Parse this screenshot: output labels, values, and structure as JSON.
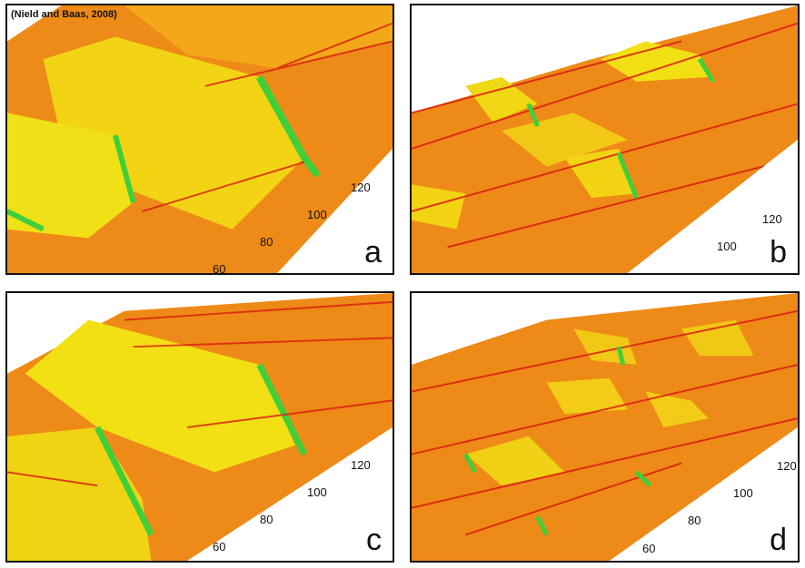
{
  "credit": "(Nield and Baas, 2008)",
  "panels": [
    {
      "label": "a",
      "ticks": [
        "60",
        "80",
        "100",
        "120"
      ]
    },
    {
      "label": "b",
      "ticks": [
        "100",
        "120"
      ]
    },
    {
      "label": "c",
      "ticks": [
        "60",
        "80",
        "100",
        "120"
      ]
    },
    {
      "label": "d",
      "ticks": [
        "60",
        "80",
        "100",
        "120"
      ]
    }
  ],
  "colors": {
    "low": "#e8700f",
    "mid": "#f5b418",
    "high": "#f2f20a",
    "crest": "#3fcf3a",
    "ridge": "#d81c10",
    "frame": "#111111"
  }
}
